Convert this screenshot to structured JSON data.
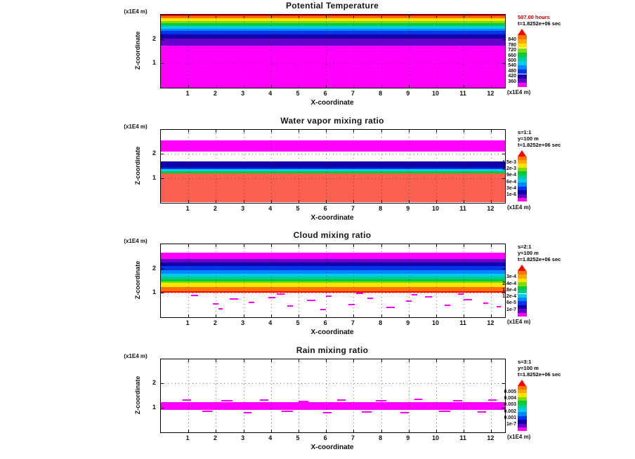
{
  "figure": {
    "background": "#ffffff",
    "panel_titles": [
      "Potential Temperature",
      "Water vapor mixing ratio",
      "Cloud mixing ratio",
      "Rain mixing ratio"
    ]
  },
  "chart_data": [
    {
      "type": "heatmap",
      "title": "Potential Temperature",
      "xlabel": "X-coordinate",
      "ylabel": "Z-coordinate",
      "x_unit": "(x1E4 m)",
      "y_unit": "(x1E4 m)",
      "xlim": [
        0,
        12.5
      ],
      "ylim": [
        0,
        3.0
      ],
      "xticks": [
        1,
        2,
        3,
        4,
        5,
        6,
        7,
        8,
        9,
        10,
        11,
        12
      ],
      "yticks": [
        1,
        2
      ],
      "annotations": [
        {
          "text": "507.00 hours",
          "color": "#bb0000"
        },
        {
          "text": "t=1.8252e+06 sec",
          "color": "#000000"
        }
      ],
      "bands": [
        {
          "z_from": 3.0,
          "z_to": 2.94,
          "color": "#ff0000"
        },
        {
          "z_from": 2.94,
          "z_to": 2.85,
          "color": "#ff7300"
        },
        {
          "z_from": 2.85,
          "z_to": 2.74,
          "color": "#ffe400"
        },
        {
          "z_from": 2.74,
          "z_to": 2.66,
          "color": "#7ddd00"
        },
        {
          "z_from": 2.66,
          "z_to": 2.58,
          "color": "#00cc33"
        },
        {
          "z_from": 2.58,
          "z_to": 2.51,
          "color": "#00cc99"
        },
        {
          "z_from": 2.51,
          "z_to": 2.43,
          "color": "#00ccee"
        },
        {
          "z_from": 2.43,
          "z_to": 2.33,
          "color": "#0088ff"
        },
        {
          "z_from": 2.33,
          "z_to": 2.2,
          "color": "#0033ee"
        },
        {
          "z_from": 2.2,
          "z_to": 2.02,
          "color": "#1100aa"
        },
        {
          "z_from": 2.02,
          "z_to": 1.72,
          "color": "#6600cc"
        },
        {
          "z_from": 1.72,
          "z_to": 0.0,
          "color": "#ff00ff"
        }
      ],
      "speckles": [],
      "speckle_color": "#ff00ff",
      "colorbar": {
        "pointer_color": "#ff0000",
        "colors": [
          "#ff7300",
          "#ffa800",
          "#ffe400",
          "#7ddd00",
          "#00cc33",
          "#00cc99",
          "#00ccee",
          "#0088ff",
          "#0033ee",
          "#1100aa",
          "#6600cc",
          "#ff00ff"
        ],
        "labels": [
          "840",
          "780",
          "720",
          "660",
          "600",
          "540",
          "480",
          "420",
          "360"
        ]
      }
    },
    {
      "type": "heatmap",
      "title": "Water vapor mixing ratio",
      "xlabel": "X-coordinate",
      "ylabel": "Z-coordinate",
      "x_unit": "(x1E4 m)",
      "y_unit": "(x1E4 m)",
      "xlim": [
        0,
        12.5
      ],
      "ylim": [
        0,
        3.0
      ],
      "xticks": [
        1,
        2,
        3,
        4,
        5,
        6,
        7,
        8,
        9,
        10,
        11,
        12
      ],
      "yticks": [
        1,
        2
      ],
      "annotations": [
        {
          "text": "s=1:1",
          "color": "#000000"
        },
        {
          "text": "y=100 m",
          "color": "#000000"
        },
        {
          "text": "t=1.8252e+06 sec",
          "color": "#000000"
        }
      ],
      "bands": [
        {
          "z_from": 2.55,
          "z_to": 2.1,
          "color": "#ff00ff"
        },
        {
          "z_from": 1.7,
          "z_to": 1.44,
          "color": "#1100aa"
        },
        {
          "z_from": 1.44,
          "z_to": 1.36,
          "color": "#0033ee"
        },
        {
          "z_from": 1.36,
          "z_to": 1.29,
          "color": "#00ccee"
        },
        {
          "z_from": 1.29,
          "z_to": 1.21,
          "color": "#00cc33"
        },
        {
          "z_from": 1.21,
          "z_to": 0.0,
          "color": "#fa6050"
        }
      ],
      "speckles": [],
      "speckle_color": "#ff00ff",
      "colorbar": {
        "pointer_color": "#ff0000",
        "colors": [
          "#ff7300",
          "#ffa800",
          "#ffe400",
          "#7ddd00",
          "#00cc33",
          "#00cc99",
          "#00ccee",
          "#0088ff",
          "#0033ee",
          "#1100aa",
          "#6600cc",
          "#ff00ff"
        ],
        "labels": [
          "1.5e-3",
          "1.2e-3",
          "9e-4",
          "6e-4",
          "3e-4",
          "1e-6"
        ]
      }
    },
    {
      "type": "heatmap",
      "title": "Cloud mixing ratio",
      "xlabel": "X-coordinate",
      "ylabel": "Z-coordinate",
      "x_unit": "(x1E4 m)",
      "y_unit": "(x1E4 m)",
      "xlim": [
        0,
        12.5
      ],
      "ylim": [
        0,
        3.0
      ],
      "xticks": [
        1,
        2,
        3,
        4,
        5,
        6,
        7,
        8,
        9,
        10,
        11,
        12
      ],
      "yticks": [
        1,
        2
      ],
      "annotations": [
        {
          "text": "s=2:1",
          "color": "#000000"
        },
        {
          "text": "y=100 m",
          "color": "#000000"
        },
        {
          "text": "t=1.8252e+06 sec",
          "color": "#000000"
        }
      ],
      "bands": [
        {
          "z_from": 2.65,
          "z_to": 2.38,
          "color": "#ff00ff"
        },
        {
          "z_from": 2.38,
          "z_to": 2.26,
          "color": "#6600cc"
        },
        {
          "z_from": 2.26,
          "z_to": 2.1,
          "color": "#1100aa"
        },
        {
          "z_from": 2.1,
          "z_to": 1.94,
          "color": "#0033ee"
        },
        {
          "z_from": 1.94,
          "z_to": 1.8,
          "color": "#0088ff"
        },
        {
          "z_from": 1.8,
          "z_to": 1.68,
          "color": "#00ccee"
        },
        {
          "z_from": 1.68,
          "z_to": 1.57,
          "color": "#00cc99"
        },
        {
          "z_from": 1.57,
          "z_to": 1.46,
          "color": "#00cc33"
        },
        {
          "z_from": 1.46,
          "z_to": 1.4,
          "color": "#7ddd00"
        },
        {
          "z_from": 1.4,
          "z_to": 1.24,
          "color": "#ffe400"
        },
        {
          "z_from": 1.24,
          "z_to": 1.06,
          "color": "#ff7300"
        },
        {
          "z_from": 1.06,
          "z_to": 1.02,
          "color": "#ff0000"
        }
      ],
      "speckles": [
        [
          1.1,
          0.88,
          0.25
        ],
        [
          1.9,
          0.55,
          0.2
        ],
        [
          2.5,
          0.74,
          0.3
        ],
        [
          3.2,
          0.62,
          0.2
        ],
        [
          3.9,
          0.81,
          0.25
        ],
        [
          4.6,
          0.45,
          0.2
        ],
        [
          5.3,
          0.7,
          0.3
        ],
        [
          6.0,
          0.86,
          0.2
        ],
        [
          6.8,
          0.52,
          0.25
        ],
        [
          7.5,
          0.77,
          0.2
        ],
        [
          8.2,
          0.4,
          0.3
        ],
        [
          8.9,
          0.65,
          0.2
        ],
        [
          9.6,
          0.83,
          0.25
        ],
        [
          10.3,
          0.5,
          0.2
        ],
        [
          11.0,
          0.72,
          0.3
        ],
        [
          11.7,
          0.58,
          0.2
        ],
        [
          12.2,
          0.44,
          0.15
        ],
        [
          2.1,
          0.35,
          0.15
        ],
        [
          5.8,
          0.33,
          0.2
        ],
        [
          9.1,
          0.92,
          0.2
        ],
        [
          4.2,
          0.95,
          0.3
        ],
        [
          7.1,
          0.97,
          0.25
        ],
        [
          10.8,
          0.95,
          0.2
        ]
      ],
      "speckle_color": "#ff00ff",
      "colorbar": {
        "pointer_color": "#ff0000",
        "colors": [
          "#ff7300",
          "#ffa800",
          "#ffe400",
          "#7ddd00",
          "#00cc33",
          "#00cc99",
          "#00ccee",
          "#0088ff",
          "#0033ee",
          "#1100aa",
          "#6600cc",
          "#ff00ff"
        ],
        "labels": [
          "3e-4",
          "2.4e-4",
          "1.8e-4",
          "1.2e-4",
          "6e-5",
          "1e-7"
        ]
      }
    },
    {
      "type": "heatmap",
      "title": "Rain mixing ratio",
      "xlabel": "X-coordinate",
      "ylabel": "Z-coordinate",
      "x_unit": "(x1E4 m)",
      "y_unit": "(x1E4 m)",
      "xlim": [
        0,
        12.5
      ],
      "ylim": [
        0,
        3.0
      ],
      "xticks": [
        1,
        2,
        3,
        4,
        5,
        6,
        7,
        8,
        9,
        10,
        11,
        12
      ],
      "yticks": [
        1,
        2
      ],
      "annotations": [
        {
          "text": "s=3:1",
          "color": "#000000"
        },
        {
          "text": "y=100 m",
          "color": "#000000"
        },
        {
          "text": "t=1.8252e+06 sec",
          "color": "#000000"
        }
      ],
      "bands": [
        {
          "z_from": 1.22,
          "z_to": 0.9,
          "color": "#ff00ff"
        }
      ],
      "speckles": [
        [
          0.8,
          1.3,
          0.3
        ],
        [
          2.2,
          1.27,
          0.4
        ],
        [
          3.6,
          1.32,
          0.3
        ],
        [
          5.0,
          1.26,
          0.35
        ],
        [
          6.4,
          1.31,
          0.3
        ],
        [
          7.8,
          1.28,
          0.4
        ],
        [
          9.2,
          1.33,
          0.3
        ],
        [
          10.6,
          1.27,
          0.35
        ],
        [
          11.9,
          1.3,
          0.3
        ],
        [
          1.5,
          0.84,
          0.35
        ],
        [
          3.0,
          0.8,
          0.3
        ],
        [
          4.4,
          0.86,
          0.4
        ],
        [
          5.9,
          0.79,
          0.3
        ],
        [
          7.3,
          0.83,
          0.35
        ],
        [
          8.7,
          0.78,
          0.3
        ],
        [
          10.1,
          0.85,
          0.4
        ],
        [
          11.5,
          0.81,
          0.3
        ]
      ],
      "speckle_color": "#ff00ff",
      "colorbar": {
        "pointer_color": "#ff0000",
        "colors": [
          "#ff7300",
          "#ffa800",
          "#ffe400",
          "#7ddd00",
          "#00cc33",
          "#00cc99",
          "#00ccee",
          "#0088ff",
          "#0033ee",
          "#1100aa",
          "#6600cc",
          "#ff00ff"
        ],
        "labels": [
          "0.005",
          "0.004",
          "0.003",
          "0.002",
          "0.001",
          "1e-7"
        ]
      }
    }
  ]
}
